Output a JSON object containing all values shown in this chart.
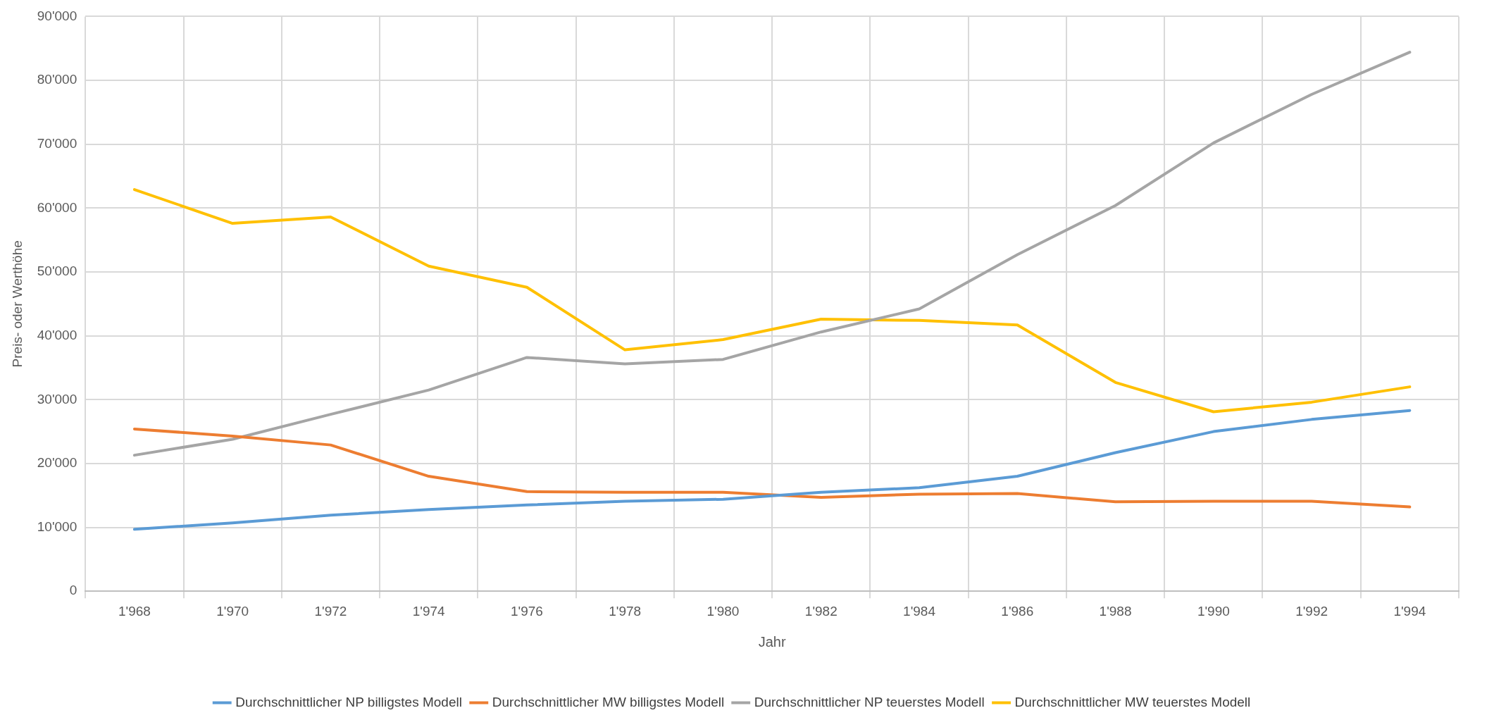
{
  "chart_data": {
    "type": "line",
    "xlabel": "Jahr",
    "ylabel": "Preis- oder Werthöhe",
    "categories": [
      "1'968",
      "1'970",
      "1'972",
      "1'974",
      "1'976",
      "1'978",
      "1'980",
      "1'982",
      "1'984",
      "1'986",
      "1'988",
      "1'990",
      "1'992",
      "1'994"
    ],
    "series": [
      {
        "name": "Durchschnittlicher NP billigstes Modell",
        "color": "#5b9bd5",
        "values": [
          9700,
          10700,
          11900,
          12800,
          13500,
          14100,
          14400,
          15500,
          16200,
          18000,
          21700,
          25000,
          26900,
          28300
        ]
      },
      {
        "name": "Durchschnittlicher MW billigstes Modell",
        "color": "#ed7d31",
        "values": [
          25400,
          24300,
          22900,
          18000,
          15600,
          15500,
          15500,
          14700,
          15200,
          15300,
          14000,
          14100,
          14100,
          13200
        ]
      },
      {
        "name": "Durchschnittlicher NP teuerstes Modell",
        "color": "#a5a5a5",
        "values": [
          21300,
          23800,
          27700,
          31500,
          36600,
          35600,
          36300,
          40600,
          44200,
          52700,
          60400,
          70200,
          77800,
          84400
        ]
      },
      {
        "name": "Durchschnittlicher MW teuerstes Modell",
        "color": "#ffc000",
        "values": [
          62900,
          57600,
          58600,
          50900,
          47600,
          37800,
          39400,
          42600,
          42400,
          41700,
          32700,
          28100,
          29600,
          32000
        ]
      }
    ],
    "ylim": [
      0,
      90000
    ],
    "yticks": [
      0,
      {
        "value": 10000,
        "label": "10'000"
      },
      {
        "value": 20000,
        "label": "20'000"
      },
      {
        "value": 30000,
        "label": "30'000"
      },
      {
        "value": 40000,
        "label": "40'000"
      },
      {
        "value": 50000,
        "label": "50'000"
      },
      {
        "value": 60000,
        "label": "60'000"
      },
      {
        "value": 70000,
        "label": "70'000"
      },
      {
        "value": 80000,
        "label": "80'000"
      },
      {
        "value": 90000,
        "label": "90'000"
      }
    ],
    "grid": true,
    "legend": "bottom",
    "marker": "none",
    "line_style": "solid"
  }
}
